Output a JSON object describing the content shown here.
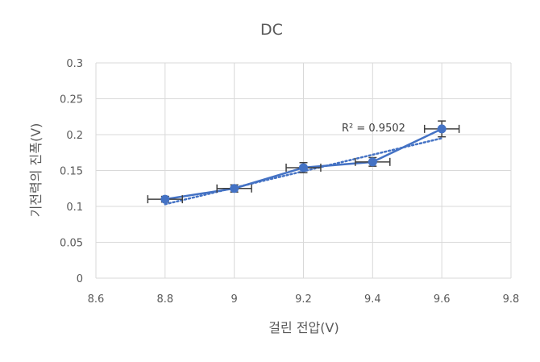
{
  "chart_data": {
    "type": "line",
    "title": "DC",
    "xlabel": "걸린 전압(V)",
    "ylabel": "기전력의 진폭(V)",
    "xlim": [
      8.6,
      9.8
    ],
    "ylim": [
      0,
      0.3
    ],
    "x_ticks": [
      8.6,
      8.8,
      9,
      9.2,
      9.4,
      9.6,
      9.8
    ],
    "x_tick_labels": [
      "8.6",
      "8.8",
      "9",
      "9.2",
      "9.4",
      "9.6",
      "9.8"
    ],
    "y_ticks": [
      0,
      0.05,
      0.1,
      0.15,
      0.2,
      0.25,
      0.3
    ],
    "y_tick_labels": [
      "0",
      "0.05",
      "0.1",
      "0.15",
      "0.2",
      "0.25",
      "0.3"
    ],
    "grid": true,
    "series": [
      {
        "x": [
          8.8,
          9.0,
          9.2,
          9.4,
          9.6
        ],
        "y": [
          0.11,
          0.125,
          0.154,
          0.162,
          0.208
        ],
        "x_error": [
          0.05,
          0.05,
          0.05,
          0.05,
          0.05
        ],
        "y_error": [
          0.004,
          0.005,
          0.007,
          0.006,
          0.011
        ],
        "color": "#4472c4"
      }
    ],
    "trendline": {
      "kind": "linear",
      "slope": 0.115,
      "intercept": -0.909,
      "x_range": [
        8.8,
        9.6
      ],
      "style": "dotted",
      "color": "#4472c4"
    },
    "annotation": "R² = 0.9502"
  }
}
